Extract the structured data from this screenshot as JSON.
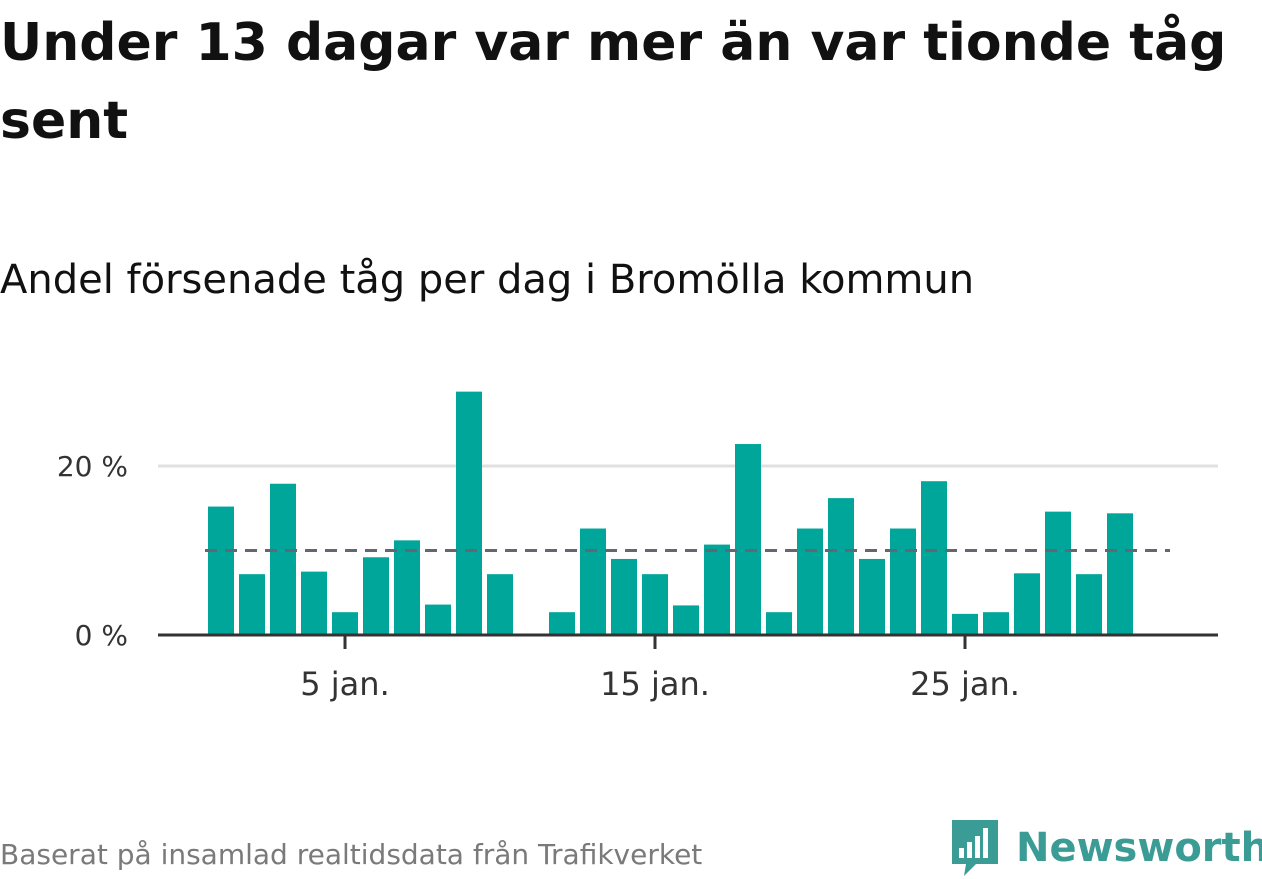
{
  "title": "Under 13 dagar var mer än var tionde tåg sent",
  "subtitle": "Andel försenade tåg per dag i Bromölla kommun",
  "source": "Baserat på insamlad realtidsdata från Trafikverket",
  "brand": {
    "name": "Newsworthy",
    "color": "#3a9c94",
    "icon": "newsworthy-logo-icon"
  },
  "colors": {
    "bar": "#00a69a",
    "reference": "#666670",
    "grid": "#e0e0e0",
    "axis": "#333333"
  },
  "chart_data": {
    "type": "bar",
    "x": [
      1,
      2,
      3,
      4,
      5,
      6,
      7,
      8,
      9,
      10,
      11,
      12,
      13,
      14,
      15,
      16,
      17,
      18,
      19,
      20,
      21,
      22,
      23,
      24,
      25,
      26,
      27,
      28,
      29,
      30
    ],
    "values": [
      15.2,
      7.2,
      17.9,
      7.5,
      2.7,
      9.2,
      11.2,
      3.6,
      28.8,
      7.2,
      null,
      2.7,
      12.6,
      9.0,
      7.2,
      3.5,
      10.7,
      22.6,
      2.7,
      12.6,
      16.2,
      9.0,
      12.6,
      18.2,
      2.5,
      2.7,
      7.3,
      14.6,
      7.2,
      14.4
    ],
    "unit": "%",
    "ylim": [
      0,
      30
    ],
    "yticks": [
      {
        "value": 0,
        "label": "0 %"
      },
      {
        "value": 20,
        "label": "20 %"
      }
    ],
    "xticks": [
      {
        "value": 5,
        "label": "5 jan."
      },
      {
        "value": 15,
        "label": "15 jan."
      },
      {
        "value": 25,
        "label": "25 jan."
      }
    ],
    "reference_line": {
      "value": 10,
      "style": "dashed"
    },
    "grid": true,
    "legend": false
  }
}
